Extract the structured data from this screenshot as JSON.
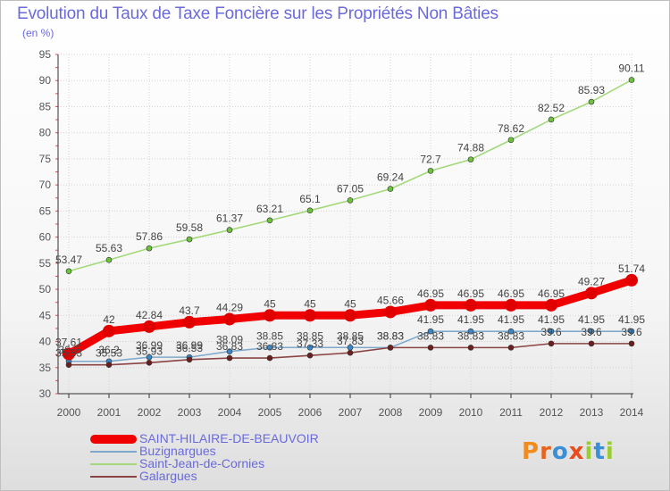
{
  "title": "Evolution du Taux de Taxe Foncière sur les Propriétés Non Bâties",
  "unit_label": "(en %)",
  "logo_text": "Proxiti",
  "logo_colors": [
    "#f08c1e",
    "#e8641e",
    "#3a8fd6",
    "#e84c1e",
    "#9acd32",
    "#3a8fd6",
    "#9acd32"
  ],
  "chart_data": {
    "type": "line",
    "x": [
      "2000",
      "2001",
      "2002",
      "2003",
      "2004",
      "2005",
      "2006",
      "2007",
      "2008",
      "2009",
      "2010",
      "2011",
      "2012",
      "2013",
      "2014"
    ],
    "ylim": [
      30,
      95
    ],
    "yticks": [
      30,
      35,
      40,
      45,
      50,
      55,
      60,
      65,
      70,
      75,
      80,
      85,
      90,
      95
    ],
    "grid": true,
    "legend_position": "bottom-left",
    "series": [
      {
        "name": "Saint-Jean-de-Cornies",
        "color": "#a3d97a",
        "marker": "#6cc23c",
        "emphasis": false,
        "values": [
          53.47,
          55.63,
          57.86,
          59.58,
          61.37,
          63.21,
          65.1,
          67.05,
          69.24,
          72.7,
          74.88,
          78.62,
          82.52,
          85.93,
          90.11
        ],
        "labels": [
          "53.47",
          "55.63",
          "57.86",
          "59.58",
          "61.37",
          "63.21",
          "65.1",
          "67.05",
          "69.24",
          "72.7",
          "74.88",
          "78.62",
          "82.52",
          "85.93",
          "90.11"
        ]
      },
      {
        "name": "Buzignargues",
        "color": "#7fa9cc",
        "marker": "#3d86c6",
        "emphasis": false,
        "values": [
          36.2,
          36.2,
          36.99,
          36.99,
          38.09,
          38.85,
          38.85,
          38.85,
          38.83,
          41.95,
          41.95,
          41.95,
          41.95,
          41.95,
          41.95
        ],
        "labels": [
          "36.2",
          "36.2",
          "36.99",
          "36.99",
          "38.09",
          "38.85",
          "38.85",
          "38.85",
          "38.83",
          "41.95",
          "41.95",
          "41.95",
          "41.95",
          "41.95",
          "41.95"
        ]
      },
      {
        "name": "Galargues",
        "color": "#8a4444",
        "marker": "#6b2020",
        "emphasis": false,
        "values": [
          35.53,
          35.53,
          35.93,
          36.53,
          36.83,
          36.83,
          37.33,
          37.83,
          38.83,
          38.83,
          38.83,
          38.83,
          39.6,
          39.6,
          39.6
        ],
        "labels": [
          "35.53",
          "35.53",
          "35.93",
          "36.53",
          "36.83",
          "36.83",
          "37.33",
          "37.83",
          "38.83",
          "38.83",
          "38.83",
          "38.83",
          "39.6",
          "39.6",
          "39.6"
        ]
      },
      {
        "name": "SAINT-HILAIRE-DE-BEAUVOIR",
        "color": "#f00000",
        "marker": "#e00000",
        "emphasis": true,
        "values": [
          37.61,
          42,
          42.84,
          43.7,
          44.29,
          45,
          45,
          45,
          45.66,
          46.95,
          46.95,
          46.95,
          46.95,
          49.27,
          51.74
        ],
        "labels": [
          "37.61",
          "42",
          "42.84",
          "43.7",
          "44.29",
          "45",
          "45",
          "45",
          "45.66",
          "46.95",
          "46.95",
          "46.95",
          "46.95",
          "49.27",
          "51.74"
        ]
      }
    ],
    "legend": [
      {
        "name": "SAINT-HILAIRE-DE-BEAUVOIR",
        "color": "#f00000",
        "thickness": 10
      },
      {
        "name": "Buzignargues",
        "color": "#7fa9cc",
        "thickness": 2
      },
      {
        "name": "Saint-Jean-de-Cornies",
        "color": "#a3d97a",
        "thickness": 2
      },
      {
        "name": "Galargues",
        "color": "#8a4444",
        "thickness": 2
      }
    ]
  }
}
